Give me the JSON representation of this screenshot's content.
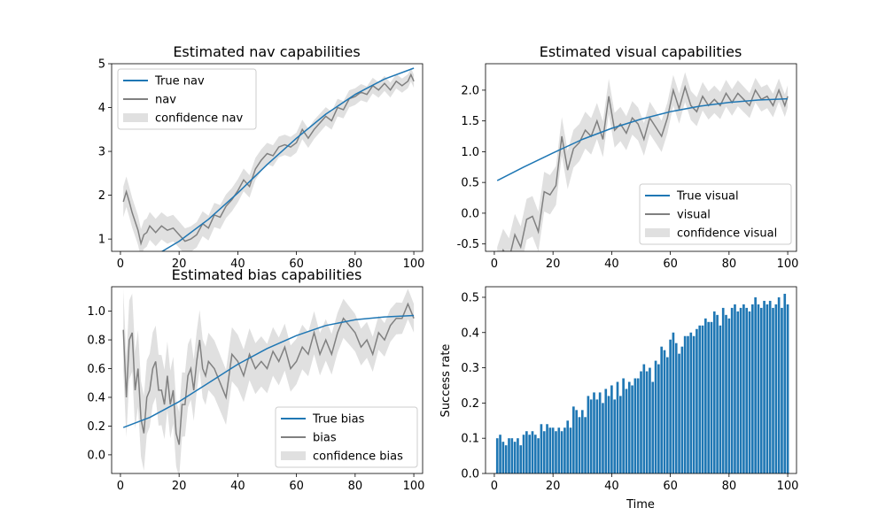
{
  "chart_data": [
    {
      "type": "line",
      "title": "Estimated nav capabilities",
      "xlabel": "",
      "ylabel": "",
      "xlim": [
        -3,
        103
      ],
      "ylim": [
        0.72,
        5.0
      ],
      "xticks": [
        0,
        20,
        40,
        60,
        80,
        100
      ],
      "yticks": [
        1,
        2,
        3,
        4,
        5
      ],
      "legend": {
        "position": "top-left",
        "entries": [
          "True nav",
          "nav",
          "confidence nav"
        ]
      },
      "series": [
        {
          "name": "True nav",
          "kind": "line",
          "color": "#1f77b4",
          "x": [
            1,
            10,
            20,
            30,
            40,
            50,
            60,
            70,
            80,
            90,
            100
          ],
          "y": [
            0.35,
            0.55,
            0.95,
            1.45,
            2.05,
            2.7,
            3.3,
            3.85,
            4.3,
            4.65,
            4.9
          ]
        },
        {
          "name": "nav",
          "kind": "line",
          "color": "#808080",
          "x": [
            1,
            2,
            3,
            4,
            5,
            6,
            7,
            8,
            9,
            10,
            12,
            14,
            16,
            18,
            20,
            22,
            24,
            26,
            28,
            30,
            32,
            34,
            36,
            38,
            40,
            42,
            44,
            46,
            48,
            50,
            52,
            54,
            56,
            58,
            60,
            62,
            64,
            66,
            68,
            70,
            72,
            74,
            76,
            78,
            80,
            82,
            84,
            86,
            88,
            90,
            92,
            94,
            96,
            98,
            99,
            100
          ],
          "y": [
            1.85,
            2.08,
            1.85,
            1.6,
            1.4,
            1.2,
            0.9,
            1.1,
            1.15,
            1.3,
            1.15,
            1.3,
            1.2,
            1.25,
            1.1,
            0.95,
            1.0,
            1.1,
            1.35,
            1.25,
            1.55,
            1.5,
            1.75,
            1.9,
            2.1,
            2.35,
            2.2,
            2.6,
            2.8,
            2.95,
            2.9,
            3.1,
            3.15,
            3.1,
            3.2,
            3.5,
            3.3,
            3.5,
            3.65,
            3.8,
            3.7,
            4.0,
            3.95,
            4.2,
            4.25,
            4.35,
            4.3,
            4.5,
            4.4,
            4.55,
            4.4,
            4.6,
            4.5,
            4.6,
            4.75,
            4.6
          ]
        },
        {
          "name": "confidence nav",
          "kind": "band",
          "color": "#d3d3d3",
          "halfwidth_start": 0.35,
          "halfwidth_end": 0.15
        }
      ]
    },
    {
      "type": "line",
      "title": "Estimated visual capabilities",
      "xlabel": "",
      "ylabel": "",
      "xlim": [
        -3,
        103
      ],
      "ylim": [
        -0.62,
        2.43
      ],
      "xticks": [
        0,
        20,
        40,
        60,
        80,
        100
      ],
      "yticks": [
        -0.5,
        0.0,
        0.5,
        1.0,
        1.5,
        2.0
      ],
      "legend": {
        "position": "bottom-right",
        "entries": [
          "True visual",
          "visual",
          "confidence visual"
        ]
      },
      "series": [
        {
          "name": "True visual",
          "kind": "line",
          "color": "#1f77b4",
          "x": [
            1,
            10,
            20,
            30,
            40,
            50,
            60,
            70,
            80,
            90,
            100
          ],
          "y": [
            0.53,
            0.75,
            0.98,
            1.2,
            1.38,
            1.53,
            1.65,
            1.74,
            1.8,
            1.84,
            1.86
          ]
        },
        {
          "name": "visual",
          "kind": "line",
          "color": "#808080",
          "x": [
            1,
            3,
            5,
            7,
            9,
            11,
            13,
            15,
            17,
            19,
            21,
            23,
            25,
            27,
            29,
            31,
            33,
            35,
            37,
            39,
            41,
            43,
            45,
            47,
            49,
            51,
            53,
            55,
            57,
            59,
            61,
            63,
            65,
            67,
            69,
            71,
            73,
            75,
            77,
            79,
            81,
            83,
            85,
            87,
            89,
            91,
            93,
            95,
            97,
            99,
            100
          ],
          "y": [
            -0.9,
            -0.6,
            -0.75,
            -0.35,
            -0.55,
            -0.1,
            -0.05,
            -0.3,
            0.35,
            0.3,
            0.45,
            1.25,
            0.7,
            1.05,
            1.15,
            1.35,
            1.25,
            1.5,
            1.2,
            1.9,
            1.35,
            1.45,
            1.3,
            1.55,
            1.45,
            1.2,
            1.55,
            1.4,
            1.25,
            1.55,
            2.0,
            1.7,
            2.05,
            1.75,
            1.65,
            1.9,
            1.75,
            1.85,
            1.75,
            1.95,
            1.8,
            1.95,
            1.85,
            1.75,
            2.0,
            1.85,
            1.9,
            1.75,
            2.0,
            1.75,
            1.9
          ]
        },
        {
          "name": "confidence visual",
          "kind": "band",
          "color": "#d3d3d3",
          "halfwidth_start": 0.35,
          "halfwidth_end": 0.18
        }
      ]
    },
    {
      "type": "line",
      "title": "Estimated bias capabilities",
      "xlabel": "",
      "ylabel": "",
      "xlim": [
        -3,
        103
      ],
      "ylim": [
        -0.13,
        1.17
      ],
      "xticks": [
        0,
        20,
        40,
        60,
        80,
        100
      ],
      "yticks": [
        0.0,
        0.2,
        0.4,
        0.6,
        0.8,
        1.0
      ],
      "legend": {
        "position": "bottom-right",
        "entries": [
          "True bias",
          "bias",
          "confidence bias"
        ]
      },
      "series": [
        {
          "name": "True bias",
          "kind": "line",
          "color": "#1f77b4",
          "x": [
            1,
            10,
            20,
            30,
            40,
            50,
            60,
            70,
            80,
            90,
            100
          ],
          "y": [
            0.19,
            0.26,
            0.37,
            0.5,
            0.63,
            0.74,
            0.83,
            0.9,
            0.94,
            0.96,
            0.97
          ]
        },
        {
          "name": "bias",
          "kind": "line",
          "color": "#808080",
          "x": [
            1,
            2,
            3,
            4,
            5,
            6,
            7,
            8,
            9,
            10,
            11,
            12,
            13,
            14,
            15,
            16,
            17,
            18,
            19,
            20,
            21,
            22,
            23,
            24,
            25,
            26,
            27,
            28,
            29,
            30,
            32,
            34,
            36,
            38,
            40,
            42,
            44,
            46,
            48,
            50,
            52,
            54,
            56,
            58,
            60,
            62,
            64,
            66,
            68,
            70,
            72,
            74,
            76,
            78,
            80,
            82,
            84,
            86,
            88,
            90,
            92,
            94,
            96,
            98,
            99,
            100
          ],
          "y": [
            0.87,
            0.4,
            0.8,
            0.85,
            0.45,
            0.6,
            0.25,
            0.15,
            0.4,
            0.45,
            0.6,
            0.65,
            0.45,
            0.45,
            0.35,
            0.55,
            0.35,
            0.45,
            0.15,
            0.07,
            0.35,
            0.35,
            0.55,
            0.6,
            0.45,
            0.65,
            0.8,
            0.6,
            0.55,
            0.65,
            0.6,
            0.5,
            0.4,
            0.7,
            0.65,
            0.55,
            0.7,
            0.6,
            0.65,
            0.6,
            0.72,
            0.65,
            0.75,
            0.6,
            0.65,
            0.75,
            0.7,
            0.85,
            0.7,
            0.8,
            0.7,
            0.85,
            0.95,
            0.9,
            0.85,
            0.75,
            0.8,
            0.7,
            0.85,
            0.8,
            0.9,
            0.95,
            0.95,
            1.05,
            1.0,
            0.95
          ]
        },
        {
          "name": "confidence bias",
          "kind": "band",
          "color": "#d3d3d3",
          "halfwidth_start": 0.28,
          "halfwidth_end": 0.1
        }
      ]
    },
    {
      "type": "bar",
      "title": "",
      "xlabel": "Time",
      "ylabel": "Success rate",
      "xlim": [
        -3,
        103
      ],
      "ylim": [
        0.0,
        0.53
      ],
      "xticks": [
        0,
        20,
        40,
        60,
        80,
        100
      ],
      "yticks": [
        0.0,
        0.1,
        0.2,
        0.3,
        0.4,
        0.5
      ],
      "color": "#1f77b4",
      "x": [
        1,
        2,
        3,
        4,
        5,
        6,
        7,
        8,
        9,
        10,
        11,
        12,
        13,
        14,
        15,
        16,
        17,
        18,
        19,
        20,
        21,
        22,
        23,
        24,
        25,
        26,
        27,
        28,
        29,
        30,
        31,
        32,
        33,
        34,
        35,
        36,
        37,
        38,
        39,
        40,
        41,
        42,
        43,
        44,
        45,
        46,
        47,
        48,
        49,
        50,
        51,
        52,
        53,
        54,
        55,
        56,
        57,
        58,
        59,
        60,
        61,
        62,
        63,
        64,
        65,
        66,
        67,
        68,
        69,
        70,
        71,
        72,
        73,
        74,
        75,
        76,
        77,
        78,
        79,
        80,
        81,
        82,
        83,
        84,
        85,
        86,
        87,
        88,
        89,
        90,
        91,
        92,
        93,
        94,
        95,
        96,
        97,
        98,
        99,
        100
      ],
      "values": [
        0.1,
        0.11,
        0.09,
        0.08,
        0.1,
        0.1,
        0.09,
        0.1,
        0.08,
        0.11,
        0.12,
        0.11,
        0.12,
        0.11,
        0.1,
        0.14,
        0.12,
        0.14,
        0.13,
        0.13,
        0.12,
        0.13,
        0.12,
        0.13,
        0.15,
        0.13,
        0.19,
        0.18,
        0.16,
        0.18,
        0.16,
        0.22,
        0.21,
        0.23,
        0.21,
        0.23,
        0.2,
        0.24,
        0.22,
        0.25,
        0.21,
        0.26,
        0.22,
        0.27,
        0.24,
        0.26,
        0.25,
        0.27,
        0.27,
        0.29,
        0.31,
        0.29,
        0.3,
        0.26,
        0.32,
        0.31,
        0.36,
        0.35,
        0.33,
        0.38,
        0.4,
        0.37,
        0.34,
        0.36,
        0.39,
        0.39,
        0.4,
        0.39,
        0.41,
        0.42,
        0.42,
        0.44,
        0.43,
        0.43,
        0.46,
        0.45,
        0.42,
        0.47,
        0.45,
        0.44,
        0.47,
        0.48,
        0.46,
        0.47,
        0.48,
        0.47,
        0.46,
        0.48,
        0.5,
        0.48,
        0.47,
        0.49,
        0.48,
        0.49,
        0.47,
        0.48,
        0.5,
        0.47,
        0.51,
        0.48
      ]
    }
  ]
}
